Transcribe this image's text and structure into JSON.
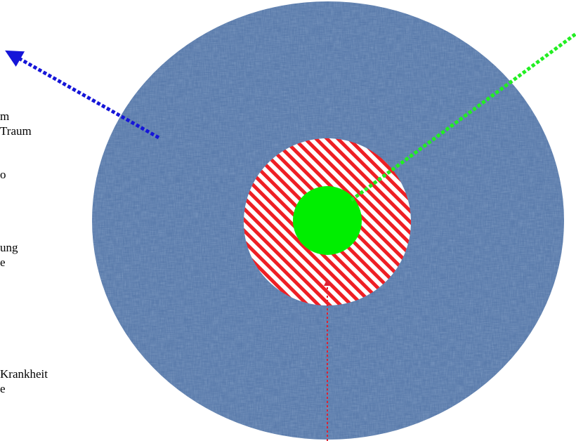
{
  "labels": {
    "left_column": [
      "m",
      "Traum",
      "o",
      "ung",
      "e",
      "Krankheit",
      "e"
    ]
  },
  "colors": {
    "outer_circle": "#5a7bab",
    "middle_ring_stripe": "#ee1f24",
    "middle_ring_bg": "#ffffff",
    "inner_circle": "#00ee00",
    "arrow_blue": "#1515d8",
    "arrow_green": "#22ee22",
    "arrow_red": "#dd2233"
  },
  "icons": [
    "texture-fill",
    "diagonal-stripes",
    "arrowhead"
  ]
}
